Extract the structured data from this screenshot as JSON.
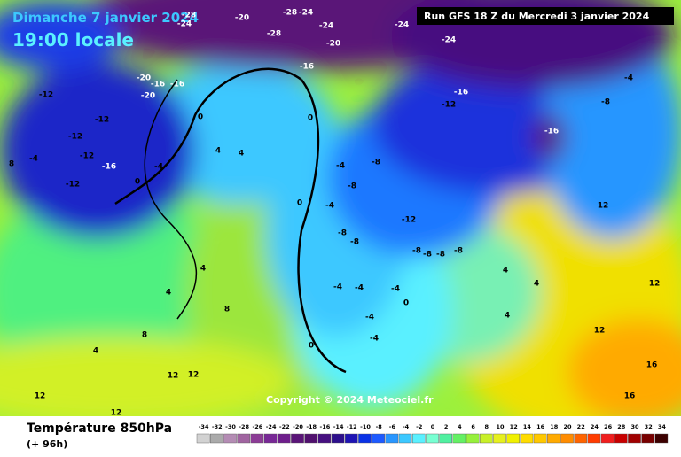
{
  "header": {
    "date": "Dimanche 7 janvier 2024",
    "time": "19:00 locale",
    "run": "Run GFS 18 Z du Mercredi 3 janvier 2024"
  },
  "copyright": "Copyright © 2024 Meteociel.fr",
  "footer": {
    "title": "Température 850hPa",
    "lead": "(+ 96h)"
  },
  "legend": {
    "values": [
      -34,
      -32,
      -30,
      -28,
      -26,
      -24,
      -22,
      -20,
      -18,
      -16,
      -14,
      -12,
      -10,
      -8,
      -6,
      -4,
      -2,
      0,
      2,
      4,
      6,
      8,
      10,
      12,
      14,
      16,
      18,
      20,
      22,
      24,
      26,
      28,
      30,
      32,
      34
    ],
    "colors": [
      "#d2d2d2",
      "#aaaaaa",
      "#b48cb4",
      "#a064a0",
      "#8c3c96",
      "#782896",
      "#6e1e8c",
      "#5a1478",
      "#50106e",
      "#461080",
      "#2d0f8c",
      "#1e14b4",
      "#0a32e6",
      "#1e5aff",
      "#2896ff",
      "#3cc8ff",
      "#5af0ff",
      "#78ffd2",
      "#50f0a0",
      "#64f064",
      "#96f03c",
      "#c8f028",
      "#e6f01e",
      "#f0f000",
      "#ffdc00",
      "#ffc800",
      "#ffaa00",
      "#ff8c00",
      "#ff6400",
      "#ff3c00",
      "#f01e1e",
      "#c80000",
      "#a00000",
      "#780000",
      "#3c0000"
    ]
  },
  "contour_labels": [
    -28,
    -24,
    -20,
    -28,
    -24,
    -24,
    -28,
    -20,
    -24,
    -24,
    -20,
    -16,
    -16,
    -20,
    -12,
    -12,
    -12,
    -12,
    -16,
    -12,
    -4,
    8,
    -16,
    -12,
    -16,
    -16,
    -8,
    -4,
    -12,
    -8,
    -8,
    -4,
    -4,
    -8,
    -8,
    -4,
    0,
    4,
    4,
    0,
    0,
    0,
    4,
    4,
    8,
    8,
    4,
    12,
    12,
    12,
    12,
    12,
    12,
    16,
    16,
    12,
    4,
    4,
    4,
    -8,
    -8,
    -8,
    -8,
    -4,
    -4,
    -4,
    -4,
    -4,
    0,
    0
  ]
}
